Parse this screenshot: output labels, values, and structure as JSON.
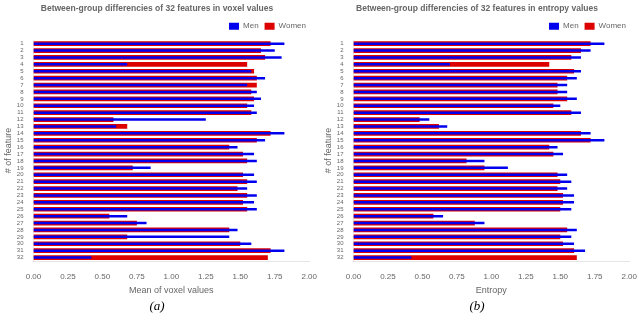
{
  "chart_data": [
    {
      "type": "bar",
      "orientation": "horizontal",
      "title": "Between-group differencies of 32 features in voxel values",
      "xlabel": "Mean of voxel values",
      "ylabel": "# of feature",
      "annotations": [
        "(a)"
      ],
      "categories": [
        "1",
        "2",
        "3",
        "4",
        "5",
        "6",
        "7",
        "8",
        "9",
        "10",
        "11",
        "12",
        "13",
        "14",
        "15",
        "16",
        "17",
        "18",
        "19",
        "20",
        "21",
        "22",
        "23",
        "24",
        "25",
        "26",
        "27",
        "28",
        "29",
        "30",
        "31",
        "32"
      ],
      "series": [
        {
          "name": "Men",
          "color": "#0000ee",
          "values": [
            1.82,
            1.75,
            1.8,
            0.68,
            1.58,
            1.68,
            1.55,
            1.62,
            1.65,
            1.6,
            1.62,
            1.25,
            0.6,
            1.82,
            1.68,
            1.48,
            1.6,
            1.62,
            0.85,
            1.6,
            1.62,
            1.55,
            1.62,
            1.6,
            1.62,
            0.68,
            0.82,
            1.48,
            1.42,
            1.58,
            1.82,
            0.42
          ]
        },
        {
          "name": "Women",
          "color": "#dd0000",
          "values": [
            1.72,
            1.65,
            1.68,
            1.55,
            1.6,
            1.62,
            1.62,
            1.58,
            1.6,
            1.55,
            1.58,
            0.58,
            0.68,
            1.72,
            1.62,
            1.42,
            1.52,
            1.55,
            0.72,
            1.52,
            1.55,
            1.48,
            1.55,
            1.52,
            1.55,
            0.55,
            0.75,
            1.42,
            0.68,
            1.5,
            1.72,
            1.7
          ]
        }
      ],
      "xlim": [
        0.0,
        2.0
      ],
      "xticks": [
        {
          "value": 0.0,
          "label": "0.00"
        },
        {
          "value": 0.25,
          "label": "0.25"
        },
        {
          "value": 0.5,
          "label": "0.50"
        },
        {
          "value": 0.75,
          "label": "0.75"
        },
        {
          "value": 1.0,
          "label": "1.00"
        },
        {
          "value": 1.25,
          "label": "1.25"
        },
        {
          "value": 1.5,
          "label": "1.50"
        },
        {
          "value": 1.75,
          "label": "1.75"
        },
        {
          "value": 2.0,
          "label": "2.00"
        }
      ],
      "grid": false,
      "legend": "upper right"
    },
    {
      "type": "bar",
      "orientation": "horizontal",
      "title": "Between-group differencies of 32 features in entropy values",
      "xlabel": "Entropy",
      "ylabel": "# of feature",
      "annotations": [
        "(b)"
      ],
      "categories": [
        "1",
        "2",
        "3",
        "4",
        "5",
        "6",
        "7",
        "8",
        "9",
        "10",
        "11",
        "12",
        "13",
        "14",
        "15",
        "16",
        "17",
        "18",
        "19",
        "20",
        "21",
        "22",
        "23",
        "24",
        "25",
        "26",
        "27",
        "28",
        "29",
        "30",
        "31",
        "32"
      ],
      "series": [
        {
          "name": "Men",
          "color": "#0000ee",
          "values": [
            1.82,
            1.72,
            1.65,
            0.7,
            1.65,
            1.62,
            1.55,
            1.55,
            1.62,
            1.5,
            1.65,
            0.55,
            0.68,
            1.72,
            1.82,
            1.48,
            1.52,
            0.95,
            1.12,
            1.55,
            1.58,
            1.55,
            1.6,
            1.6,
            1.58,
            0.65,
            0.95,
            1.62,
            1.58,
            1.6,
            1.68,
            0.42
          ]
        },
        {
          "name": "Women",
          "color": "#dd0000",
          "values": [
            1.72,
            1.65,
            1.58,
            1.42,
            1.6,
            1.55,
            1.48,
            1.48,
            1.55,
            1.45,
            1.58,
            0.48,
            0.62,
            1.65,
            1.72,
            1.42,
            1.45,
            0.82,
            0.95,
            1.48,
            1.5,
            1.48,
            1.52,
            1.52,
            1.5,
            0.58,
            0.88,
            1.55,
            1.5,
            1.52,
            1.6,
            1.62
          ]
        }
      ],
      "xlim": [
        0.0,
        2.0
      ],
      "xticks": [
        {
          "value": 0.0,
          "label": "0.00"
        },
        {
          "value": 0.25,
          "label": "0.25"
        },
        {
          "value": 0.5,
          "label": "0.50"
        },
        {
          "value": 0.75,
          "label": "0.75"
        },
        {
          "value": 1.0,
          "label": "1.00"
        },
        {
          "value": 1.25,
          "label": "1.25"
        },
        {
          "value": 1.5,
          "label": "1.50"
        },
        {
          "value": 1.75,
          "label": "1.75"
        },
        {
          "value": 2.0,
          "label": "2.00"
        }
      ],
      "grid": false,
      "legend": "upper right"
    }
  ]
}
